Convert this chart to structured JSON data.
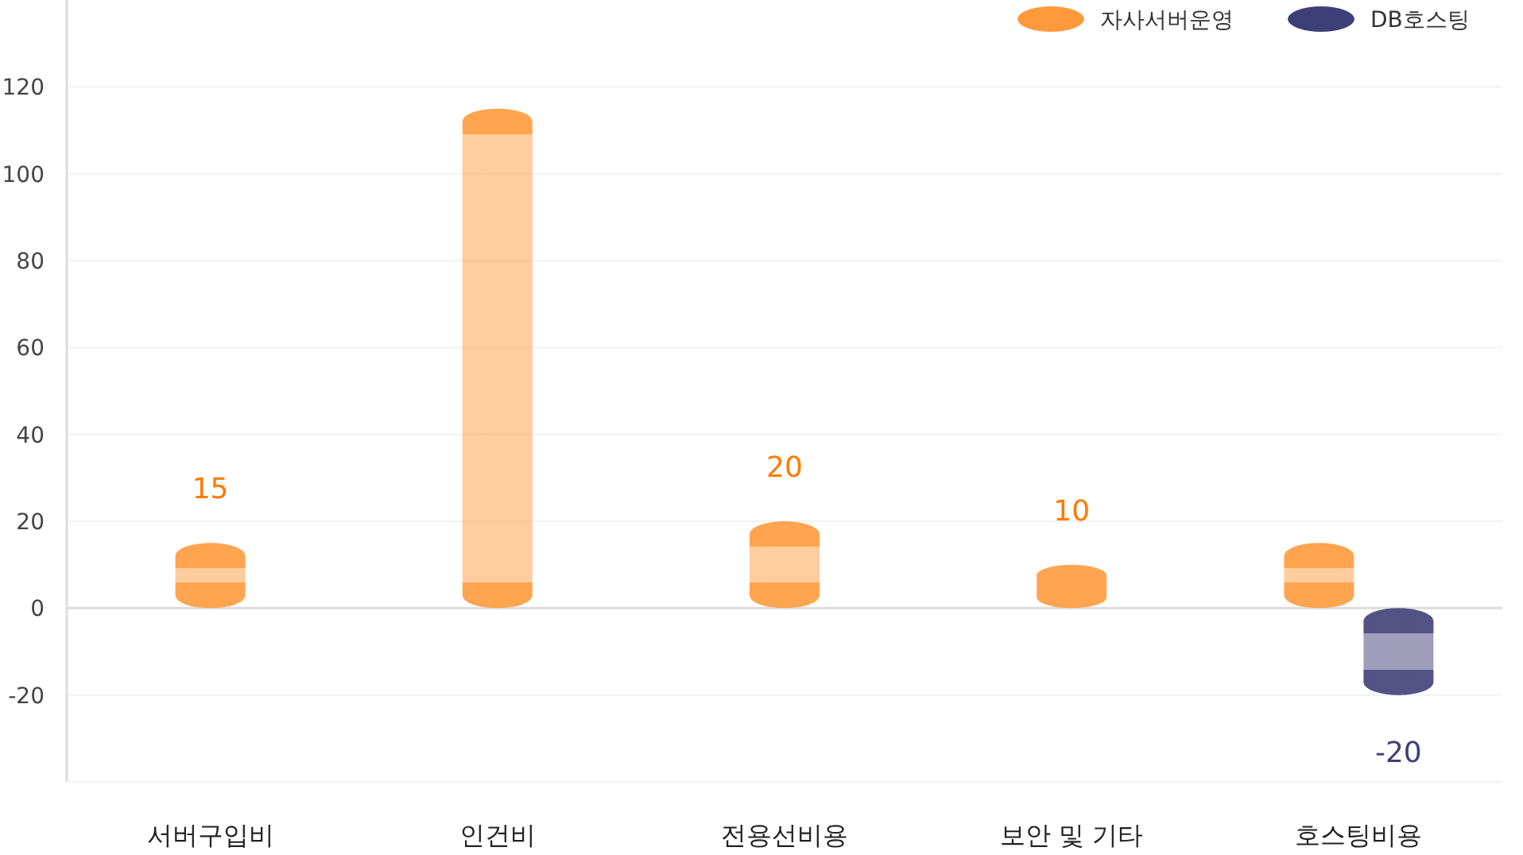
{
  "chart_data": {
    "type": "bar",
    "categories": [
      "서버구입비",
      "인건비",
      "전용선비용",
      "보안 및 기타",
      "호스팅비용"
    ],
    "series": [
      {
        "name": "자사서버운영",
        "color": "#ff9a3c",
        "values": [
          15,
          115,
          20,
          10,
          15
        ],
        "value_labels": [
          "15",
          null,
          "20",
          "10",
          null
        ]
      },
      {
        "name": "DB호스팅",
        "color": "#3f3f77",
        "values": [
          null,
          null,
          null,
          null,
          -20
        ],
        "value_labels": [
          null,
          null,
          null,
          null,
          "-20"
        ]
      }
    ],
    "ylim": [
      -40,
      140
    ],
    "yticks": [
      {
        "value": -40,
        "label": null
      },
      -20,
      0,
      20,
      40,
      60,
      80,
      100,
      120
    ],
    "grid": "y",
    "legend": "top right"
  }
}
